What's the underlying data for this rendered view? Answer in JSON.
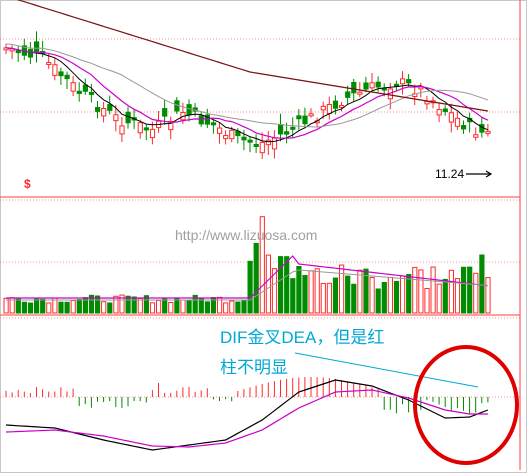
{
  "chart_data": [
    {
      "type": "candlestick",
      "panel": "price",
      "colors": {
        "up": "#ff2a2a",
        "down": "#008c00",
        "ma5": "#000000",
        "ma10": "#cc00cc",
        "ma20": "#999999",
        "ma60": "#7a1010"
      },
      "labels": {
        "symbol": "$",
        "price_marker": "11.24"
      }
    },
    {
      "type": "bar",
      "panel": "volume",
      "colors": {
        "up": "#ff2a2a",
        "down": "#008c00",
        "ma5": "#cc00cc",
        "ma10": "#999999"
      }
    },
    {
      "type": "macd",
      "panel": "macd",
      "colors": {
        "dif": "#000000",
        "dea": "#cc00cc",
        "hist_up": "#ff2a2a",
        "hist_down": "#008c00",
        "note": "#00a8d6",
        "circle": "#e00000"
      },
      "annotation": {
        "line1": "DIF金叉DEA，但是红",
        "line2": "柱不明显"
      }
    }
  ],
  "watermark": "http://www.lizuosa.com"
}
